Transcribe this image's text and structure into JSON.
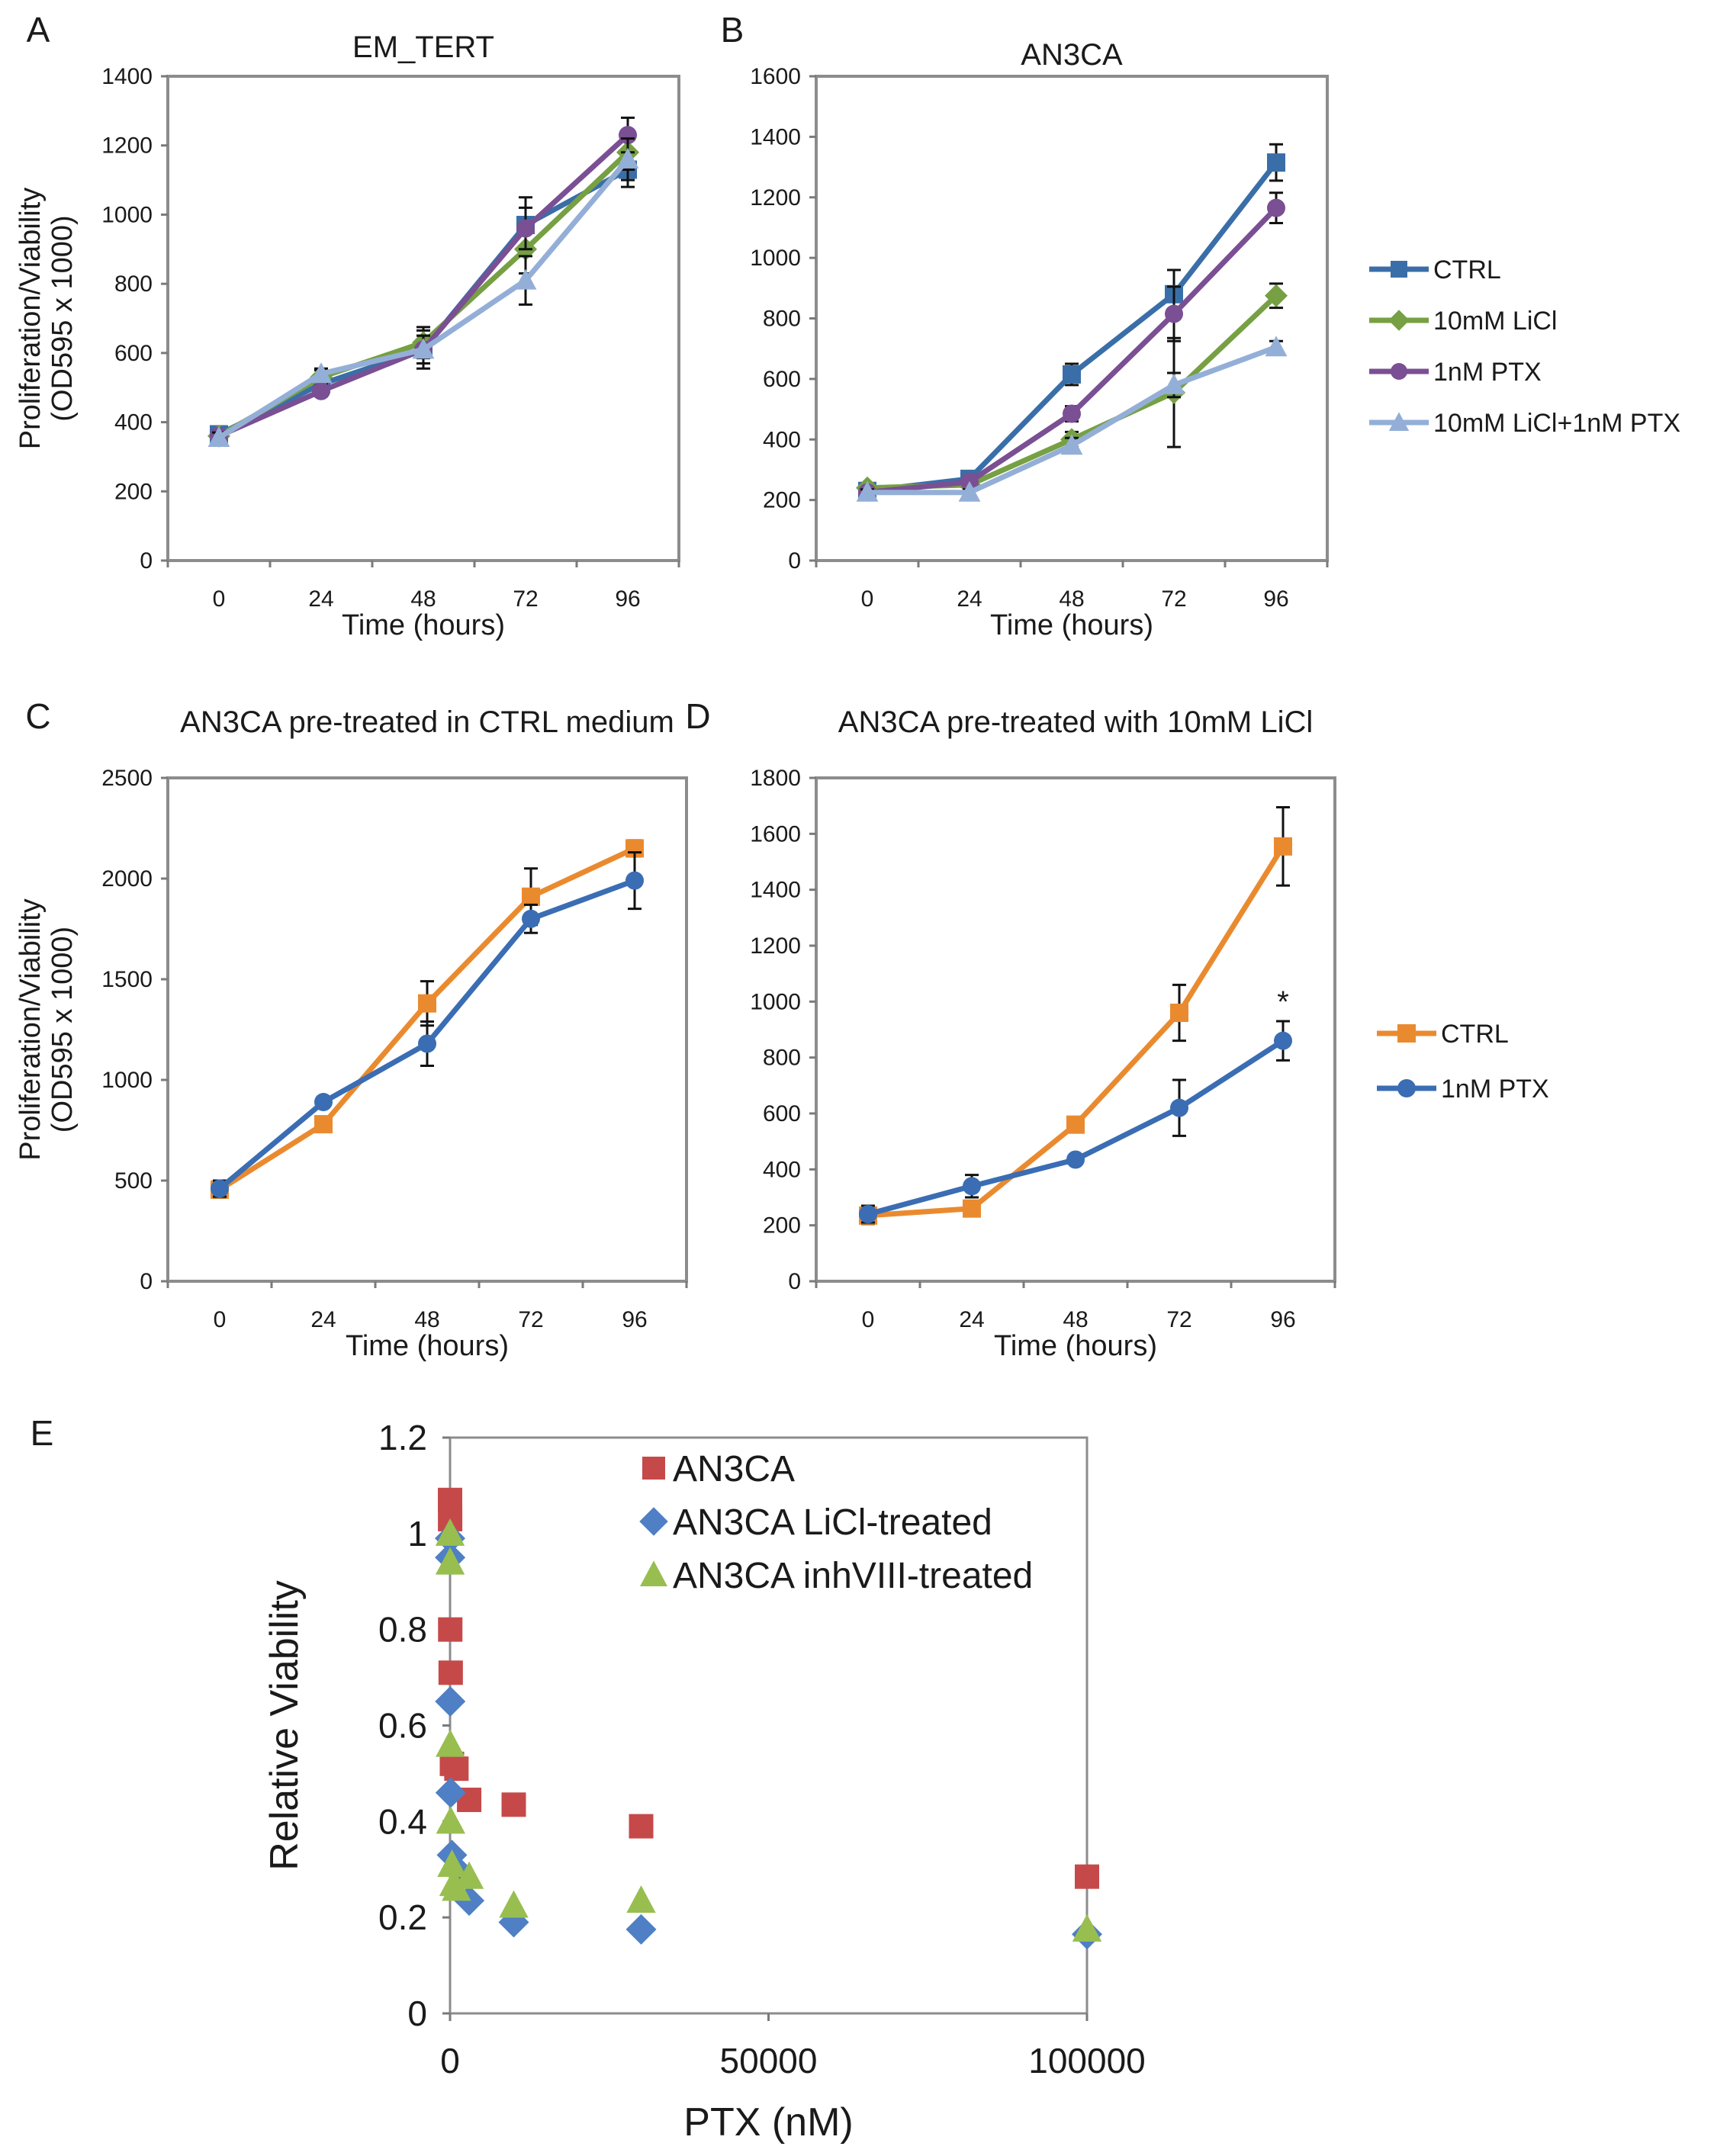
{
  "colors": {
    "ctrl_blue": "#3a6ea8",
    "licl_green": "#76a043",
    "ptx_purple": "#7a4f93",
    "combo_lightblue": "#94afd7",
    "ctrl_orange": "#ea8a2f",
    "ptx_blue": "#3a6db3",
    "e_red": "#c6494a",
    "e_blue": "#4f7fc4",
    "e_green": "#98be50",
    "axis_box": "#8c8c8c"
  },
  "chart_data": [
    {
      "id": "A",
      "panel_label": "A",
      "type": "line",
      "title": "EM_TERT",
      "xlabel": "Time (hours)",
      "ylabel_line1": "Proliferation/Viability",
      "ylabel_line2": "(OD595 x 1000)",
      "x": [
        0,
        24,
        48,
        72,
        96
      ],
      "x_tick_labels": [
        "0",
        "24",
        "48",
        "72",
        "96"
      ],
      "ylim": [
        0,
        1400
      ],
      "y_ticks": [
        0,
        200,
        400,
        600,
        800,
        1000,
        1200,
        1400
      ],
      "y_tick_labels": [
        "0",
        "200",
        "400",
        "600",
        "800",
        "1000",
        "1200",
        "1400"
      ],
      "series": [
        {
          "name": "CTRL",
          "marker": "square",
          "color": "#3a6ea8",
          "values": [
            365,
            510,
            610,
            970,
            1130
          ],
          "errors": [
            15,
            20,
            55,
            80,
            50
          ]
        },
        {
          "name": "10mM LiCl",
          "marker": "diamond",
          "color": "#76a043",
          "values": [
            360,
            530,
            630,
            900,
            1180
          ],
          "errors": [
            15,
            20,
            45,
            70,
            50
          ]
        },
        {
          "name": "1nM PTX",
          "marker": "circle",
          "color": "#7a4f93",
          "values": [
            360,
            490,
            610,
            960,
            1230
          ],
          "errors": [
            15,
            15,
            40,
            60,
            50
          ]
        },
        {
          "name": "10mM LiCl+1nM PTX",
          "marker": "triangle",
          "color": "#94afd7",
          "values": [
            355,
            540,
            610,
            810,
            1160
          ],
          "errors": [
            15,
            15,
            40,
            70,
            60
          ]
        }
      ]
    },
    {
      "id": "B",
      "panel_label": "B",
      "type": "line",
      "title": "AN3CA",
      "xlabel": "Time (hours)",
      "x": [
        0,
        24,
        48,
        72,
        96
      ],
      "x_tick_labels": [
        "0",
        "24",
        "48",
        "72",
        "96"
      ],
      "ylim": [
        0,
        1600
      ],
      "y_ticks": [
        0,
        200,
        400,
        600,
        800,
        1000,
        1200,
        1400,
        1600
      ],
      "y_tick_labels": [
        "0",
        "200",
        "400",
        "600",
        "800",
        "1000",
        "1200",
        "1400",
        "1600"
      ],
      "legend_position": "right",
      "series": [
        {
          "name": "CTRL",
          "marker": "square",
          "color": "#3a6ea8",
          "values": [
            230,
            270,
            615,
            880,
            1315
          ],
          "errors": [
            10,
            10,
            35,
            80,
            60
          ]
        },
        {
          "name": "10mM LiCl",
          "marker": "diamond",
          "color": "#76a043",
          "values": [
            240,
            250,
            400,
            555,
            875
          ],
          "errors": [
            10,
            10,
            25,
            180,
            40
          ]
        },
        {
          "name": "1nM PTX",
          "marker": "circle",
          "color": "#7a4f93",
          "values": [
            225,
            260,
            485,
            815,
            1165
          ],
          "errors": [
            10,
            10,
            25,
            90,
            50
          ]
        },
        {
          "name": "10mM LiCl+1nM PTX",
          "marker": "triangle",
          "color": "#94afd7",
          "values": [
            225,
            225,
            380,
            580,
            705
          ],
          "errors": [
            10,
            10,
            25,
            40,
            20
          ]
        }
      ]
    },
    {
      "id": "C",
      "panel_label": "C",
      "type": "line",
      "title": "AN3CA pre-treated in CTRL medium",
      "xlabel": "Time (hours)",
      "ylabel_line1": "Proliferation/Viability",
      "ylabel_line2": "(OD595 x 1000)",
      "x": [
        0,
        24,
        48,
        72,
        96
      ],
      "x_tick_labels": [
        "0",
        "24",
        "48",
        "72",
        "96"
      ],
      "ylim": [
        0,
        2500
      ],
      "y_ticks": [
        0,
        500,
        1000,
        1500,
        2000,
        2500
      ],
      "y_tick_labels": [
        "0",
        "500",
        "1000",
        "1500",
        "2000",
        "2500"
      ],
      "series": [
        {
          "name": "CTRL",
          "marker": "square",
          "color": "#ea8a2f",
          "values": [
            455,
            780,
            1380,
            1910,
            2150
          ],
          "errors": [
            40,
            20,
            110,
            140,
            40
          ]
        },
        {
          "name": "1nM PTX",
          "marker": "circle",
          "color": "#3a6db3",
          "values": [
            460,
            890,
            1180,
            1800,
            1990
          ],
          "errors": [
            40,
            20,
            110,
            70,
            140
          ]
        }
      ]
    },
    {
      "id": "D",
      "panel_label": "D",
      "type": "line",
      "title": "AN3CA pre-treated with 10mM LiCl",
      "xlabel": "Time (hours)",
      "x": [
        0,
        24,
        48,
        72,
        96
      ],
      "x_tick_labels": [
        "0",
        "24",
        "48",
        "72",
        "96"
      ],
      "ylim": [
        0,
        1800
      ],
      "y_ticks": [
        0,
        200,
        400,
        600,
        800,
        1000,
        1200,
        1400,
        1600,
        1800
      ],
      "y_tick_labels": [
        "0",
        "200",
        "400",
        "600",
        "800",
        "1000",
        "1200",
        "1400",
        "1600",
        "1800"
      ],
      "legend_position": "right",
      "annotation": "*",
      "series": [
        {
          "name": "CTRL",
          "marker": "square",
          "color": "#ea8a2f",
          "values": [
            235,
            260,
            560,
            960,
            1555
          ],
          "errors": [
            30,
            15,
            15,
            100,
            140
          ]
        },
        {
          "name": "1nM PTX",
          "marker": "circle",
          "color": "#3a6db3",
          "values": [
            240,
            340,
            435,
            620,
            860
          ],
          "errors": [
            30,
            40,
            15,
            100,
            70
          ]
        }
      ]
    },
    {
      "id": "E",
      "panel_label": "E",
      "type": "scatter",
      "xlabel": "PTX (nM)",
      "ylabel": "Relative Viability",
      "xlim": [
        0,
        100000
      ],
      "x_ticks": [
        0,
        50000,
        100000
      ],
      "x_tick_labels": [
        "0",
        "50000",
        "100000"
      ],
      "ylim": [
        0,
        1.2
      ],
      "y_ticks": [
        0,
        0.2,
        0.4,
        0.6,
        0.8,
        1,
        1.2
      ],
      "y_tick_labels": [
        "0",
        "0.2",
        "0.4",
        "0.6",
        "0.8",
        "1",
        "1.2"
      ],
      "legend_position": "top-right",
      "series": [
        {
          "name": "AN3CA",
          "marker": "square",
          "color": "#c6494a",
          "points": [
            [
              0,
              1.07
            ],
            [
              10,
              1.03
            ],
            [
              30,
              0.8
            ],
            [
              100,
              0.71
            ],
            [
              300,
              0.52
            ],
            [
              1000,
              0.51
            ],
            [
              3000,
              0.445
            ],
            [
              10000,
              0.435
            ],
            [
              30000,
              0.39
            ],
            [
              100000,
              0.285
            ]
          ]
        },
        {
          "name": "AN3CA LiCl-treated",
          "marker": "diamond",
          "color": "#4f7fc4",
          "points": [
            [
              0,
              0.99
            ],
            [
              10,
              0.95
            ],
            [
              30,
              0.65
            ],
            [
              100,
              0.46
            ],
            [
              300,
              0.33
            ],
            [
              1000,
              0.3
            ],
            [
              3000,
              0.235
            ],
            [
              10000,
              0.19
            ],
            [
              30000,
              0.175
            ],
            [
              100000,
              0.165
            ]
          ]
        },
        {
          "name": "AN3CA inhVIII-treated",
          "marker": "triangle",
          "color": "#98be50",
          "points": [
            [
              0,
              1.0
            ],
            [
              10,
              0.94
            ],
            [
              30,
              0.56
            ],
            [
              100,
              0.4
            ],
            [
              300,
              0.31
            ],
            [
              600,
              0.27
            ],
            [
              1000,
              0.26
            ],
            [
              3000,
              0.285
            ],
            [
              10000,
              0.225
            ],
            [
              30000,
              0.235
            ],
            [
              100000,
              0.175
            ]
          ]
        }
      ]
    }
  ]
}
